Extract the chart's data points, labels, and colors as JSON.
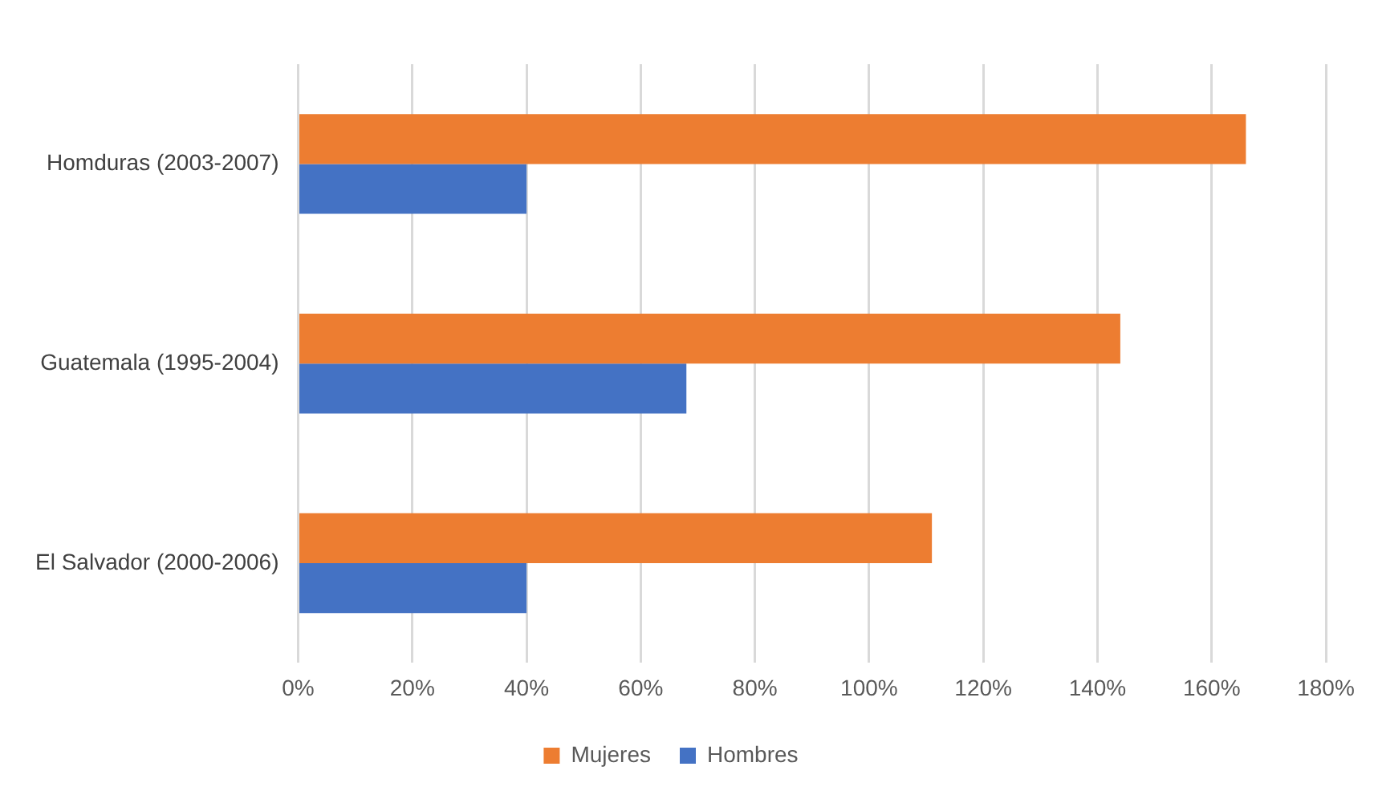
{
  "chart_data": {
    "type": "bar",
    "orientation": "horizontal",
    "categories": [
      "Homduras (2003-2007)",
      "Guatemala (1995-2004)",
      "El Salvador (2000-2006)"
    ],
    "series": [
      {
        "name": "Mujeres",
        "color": "#ed7d31",
        "values": [
          166,
          144,
          111
        ]
      },
      {
        "name": "Hombres",
        "color": "#4472c4",
        "values": [
          40,
          68,
          40
        ]
      }
    ],
    "xlim": [
      0,
      180
    ],
    "xticks": [
      {
        "value": 0,
        "label": "0%"
      },
      {
        "value": 20,
        "label": "20%"
      },
      {
        "value": 40,
        "label": "40%"
      },
      {
        "value": 60,
        "label": "60%"
      },
      {
        "value": 80,
        "label": "80%"
      },
      {
        "value": 100,
        "label": "100%"
      },
      {
        "value": 120,
        "label": "120%"
      },
      {
        "value": 140,
        "label": "140%"
      },
      {
        "value": 160,
        "label": "160%"
      },
      {
        "value": 180,
        "label": "180%"
      }
    ],
    "grid": "x",
    "legend": "bottom"
  }
}
